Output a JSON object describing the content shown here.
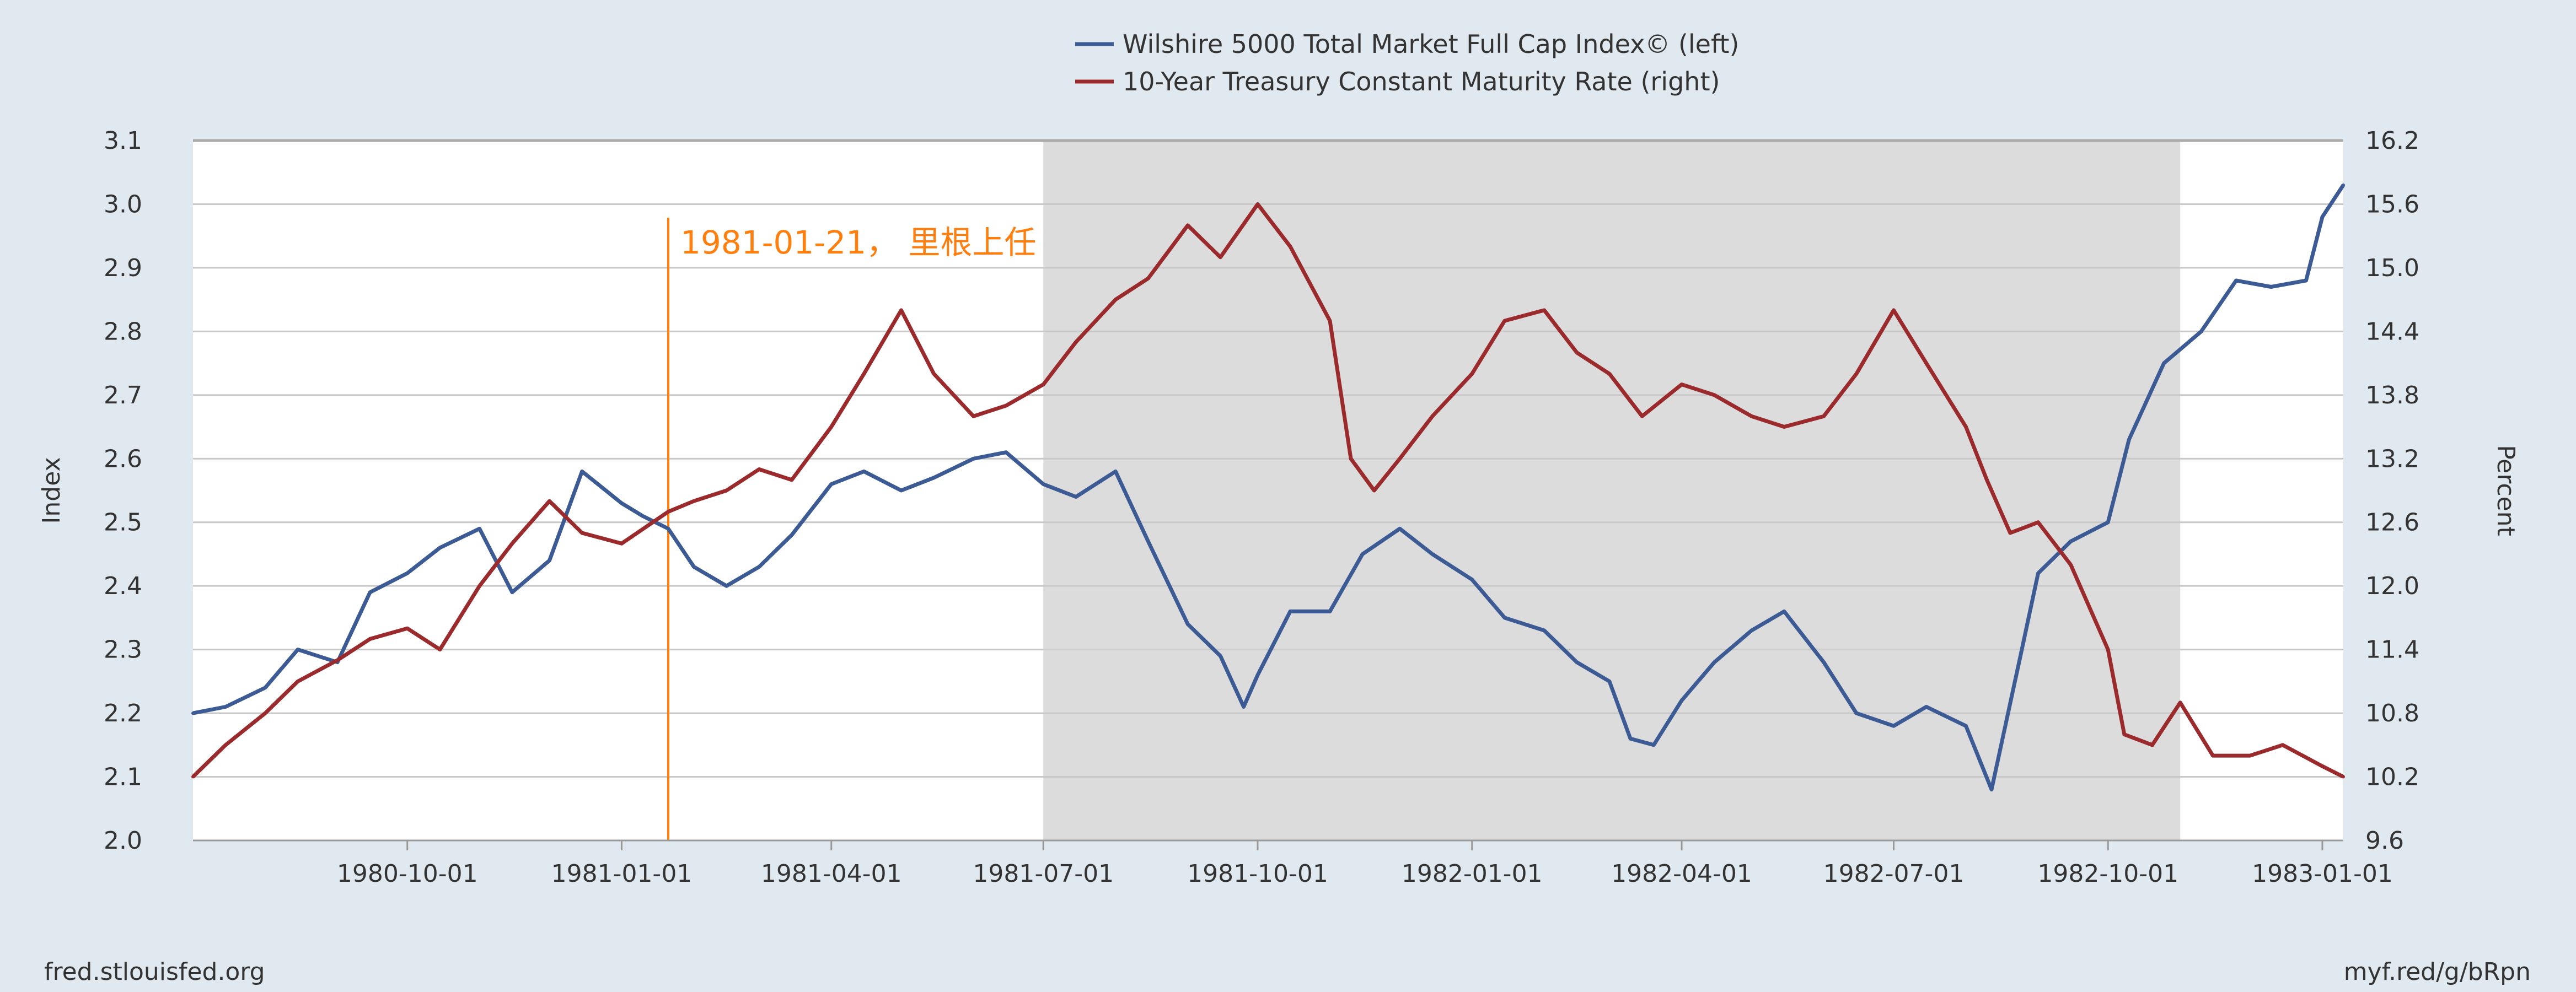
{
  "chart_data": {
    "type": "line",
    "legend_position": "top-center",
    "grid": true,
    "x_range": [
      "1980-07-01",
      "1983-01-10"
    ],
    "x_tick_labels": [
      "1980-10-01",
      "1981-01-01",
      "1981-04-01",
      "1981-07-01",
      "1981-10-01",
      "1982-01-01",
      "1982-04-01",
      "1982-07-01",
      "1982-10-01",
      "1983-01-01"
    ],
    "x_tick_dates": [
      "1980-10-01",
      "1981-01-01",
      "1981-04-01",
      "1981-07-01",
      "1981-10-01",
      "1982-01-01",
      "1982-04-01",
      "1982-07-01",
      "1982-10-01",
      "1983-01-01"
    ],
    "left_axis": {
      "label": "Index",
      "ylim": [
        2.0,
        3.1
      ],
      "ticks": [
        "2.0",
        "2.1",
        "2.2",
        "2.3",
        "2.4",
        "2.5",
        "2.6",
        "2.7",
        "2.8",
        "2.9",
        "3.0",
        "3.1"
      ]
    },
    "right_axis": {
      "label": "Percent",
      "ylim": [
        9.6,
        16.2
      ],
      "ticks": [
        "9.6",
        "10.2",
        "10.8",
        "11.4",
        "12.0",
        "12.6",
        "13.2",
        "13.8",
        "14.4",
        "15.0",
        "15.6",
        "16.2"
      ]
    },
    "recession": {
      "start": "1981-07-01",
      "end": "1982-11-01",
      "color": "#dcdcdc"
    },
    "annotation": {
      "date": "1981-01-21",
      "text": "1981-01-21， 里根上任",
      "color": "#ff7f0e"
    },
    "series": [
      {
        "name": "Wilshire 5000 Total Market Full Cap Index© (left)",
        "axis": "left",
        "color": "#3c5b95",
        "points": [
          [
            "1980-07-01",
            2.2
          ],
          [
            "1980-07-15",
            2.21
          ],
          [
            "1980-08-01",
            2.24
          ],
          [
            "1980-08-15",
            2.3
          ],
          [
            "1980-09-01",
            2.28
          ],
          [
            "1980-09-15",
            2.39
          ],
          [
            "1980-10-01",
            2.42
          ],
          [
            "1980-10-15",
            2.46
          ],
          [
            "1980-11-01",
            2.49
          ],
          [
            "1980-11-15",
            2.39
          ],
          [
            "1980-12-01",
            2.44
          ],
          [
            "1980-12-15",
            2.58
          ],
          [
            "1981-01-01",
            2.53
          ],
          [
            "1981-01-10",
            2.51
          ],
          [
            "1981-01-21",
            2.49
          ],
          [
            "1981-02-01",
            2.43
          ],
          [
            "1981-02-15",
            2.4
          ],
          [
            "1981-03-01",
            2.43
          ],
          [
            "1981-03-15",
            2.48
          ],
          [
            "1981-04-01",
            2.56
          ],
          [
            "1981-04-15",
            2.58
          ],
          [
            "1981-05-01",
            2.55
          ],
          [
            "1981-05-15",
            2.57
          ],
          [
            "1981-06-01",
            2.6
          ],
          [
            "1981-06-15",
            2.61
          ],
          [
            "1981-07-01",
            2.56
          ],
          [
            "1981-07-15",
            2.54
          ],
          [
            "1981-08-01",
            2.58
          ],
          [
            "1981-08-15",
            2.47
          ],
          [
            "1981-09-01",
            2.34
          ],
          [
            "1981-09-15",
            2.29
          ],
          [
            "1981-09-25",
            2.21
          ],
          [
            "1981-10-01",
            2.26
          ],
          [
            "1981-10-15",
            2.36
          ],
          [
            "1981-11-01",
            2.36
          ],
          [
            "1981-11-15",
            2.45
          ],
          [
            "1981-12-01",
            2.49
          ],
          [
            "1981-12-15",
            2.45
          ],
          [
            "1982-01-01",
            2.41
          ],
          [
            "1982-01-15",
            2.35
          ],
          [
            "1982-02-01",
            2.33
          ],
          [
            "1982-02-15",
            2.28
          ],
          [
            "1982-03-01",
            2.25
          ],
          [
            "1982-03-10",
            2.16
          ],
          [
            "1982-03-20",
            2.15
          ],
          [
            "1982-04-01",
            2.22
          ],
          [
            "1982-04-15",
            2.28
          ],
          [
            "1982-05-01",
            2.33
          ],
          [
            "1982-05-15",
            2.36
          ],
          [
            "1982-06-01",
            2.28
          ],
          [
            "1982-06-15",
            2.2
          ],
          [
            "1982-07-01",
            2.18
          ],
          [
            "1982-07-15",
            2.21
          ],
          [
            "1982-08-01",
            2.18
          ],
          [
            "1982-08-12",
            2.08
          ],
          [
            "1982-08-25",
            2.3
          ],
          [
            "1982-09-01",
            2.42
          ],
          [
            "1982-09-15",
            2.47
          ],
          [
            "1982-10-01",
            2.5
          ],
          [
            "1982-10-10",
            2.63
          ],
          [
            "1982-10-25",
            2.75
          ],
          [
            "1982-11-10",
            2.8
          ],
          [
            "1982-11-25",
            2.88
          ],
          [
            "1982-12-10",
            2.87
          ],
          [
            "1982-12-25",
            2.88
          ],
          [
            "1983-01-01",
            2.98
          ],
          [
            "1983-01-10",
            3.03
          ]
        ]
      },
      {
        "name": "10-Year Treasury Constant Maturity Rate (right)",
        "axis": "right",
        "color": "#9b2a2d",
        "points": [
          [
            "1980-07-01",
            10.2
          ],
          [
            "1980-07-15",
            10.5
          ],
          [
            "1980-08-01",
            10.8
          ],
          [
            "1980-08-15",
            11.1
          ],
          [
            "1980-09-01",
            11.3
          ],
          [
            "1980-09-15",
            11.5
          ],
          [
            "1980-10-01",
            11.6
          ],
          [
            "1980-10-15",
            11.4
          ],
          [
            "1980-11-01",
            12.0
          ],
          [
            "1980-11-15",
            12.4
          ],
          [
            "1980-12-01",
            12.8
          ],
          [
            "1980-12-15",
            12.5
          ],
          [
            "1981-01-01",
            12.4
          ],
          [
            "1981-01-21",
            12.7
          ],
          [
            "1981-02-01",
            12.8
          ],
          [
            "1981-02-15",
            12.9
          ],
          [
            "1981-03-01",
            13.1
          ],
          [
            "1981-03-15",
            13.0
          ],
          [
            "1981-04-01",
            13.5
          ],
          [
            "1981-04-15",
            14.0
          ],
          [
            "1981-05-01",
            14.6
          ],
          [
            "1981-05-15",
            14.0
          ],
          [
            "1981-06-01",
            13.6
          ],
          [
            "1981-06-15",
            13.7
          ],
          [
            "1981-07-01",
            13.9
          ],
          [
            "1981-07-15",
            14.3
          ],
          [
            "1981-08-01",
            14.7
          ],
          [
            "1981-08-15",
            14.9
          ],
          [
            "1981-09-01",
            15.4
          ],
          [
            "1981-09-15",
            15.1
          ],
          [
            "1981-10-01",
            15.6
          ],
          [
            "1981-10-15",
            15.2
          ],
          [
            "1981-11-01",
            14.5
          ],
          [
            "1981-11-10",
            13.2
          ],
          [
            "1981-11-20",
            12.9
          ],
          [
            "1981-12-01",
            13.2
          ],
          [
            "1981-12-15",
            13.6
          ],
          [
            "1982-01-01",
            14.0
          ],
          [
            "1982-01-15",
            14.5
          ],
          [
            "1982-02-01",
            14.6
          ],
          [
            "1982-02-15",
            14.2
          ],
          [
            "1982-03-01",
            14.0
          ],
          [
            "1982-03-15",
            13.6
          ],
          [
            "1982-04-01",
            13.9
          ],
          [
            "1982-04-15",
            13.8
          ],
          [
            "1982-05-01",
            13.6
          ],
          [
            "1982-05-15",
            13.5
          ],
          [
            "1982-06-01",
            13.6
          ],
          [
            "1982-06-15",
            14.0
          ],
          [
            "1982-07-01",
            14.6
          ],
          [
            "1982-07-15",
            14.1
          ],
          [
            "1982-08-01",
            13.5
          ],
          [
            "1982-08-10",
            13.0
          ],
          [
            "1982-08-20",
            12.5
          ],
          [
            "1982-09-01",
            12.6
          ],
          [
            "1982-09-15",
            12.2
          ],
          [
            "1982-10-01",
            11.4
          ],
          [
            "1982-10-08",
            10.6
          ],
          [
            "1982-10-20",
            10.5
          ],
          [
            "1982-11-01",
            10.9
          ],
          [
            "1982-11-15",
            10.4
          ],
          [
            "1982-12-01",
            10.4
          ],
          [
            "1982-12-15",
            10.5
          ],
          [
            "1983-01-01",
            10.3
          ],
          [
            "1983-01-10",
            10.2
          ]
        ]
      }
    ],
    "source": "fred.stlouisfed.org",
    "short_link": "myf.red/g/bRpn"
  }
}
